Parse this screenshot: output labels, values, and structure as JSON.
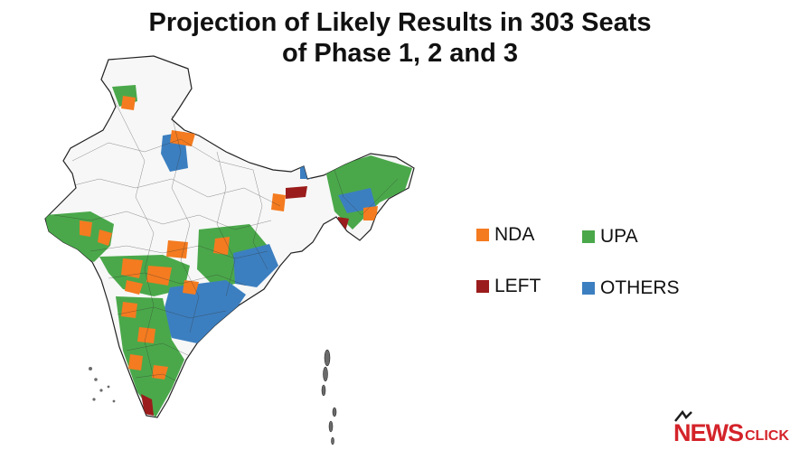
{
  "title": {
    "line1": "Projection of Likely Results in 303 Seats",
    "line2": "of Phase 1, 2 and 3"
  },
  "legend": [
    {
      "key": "nda",
      "label": "NDA",
      "color": "#f47b20"
    },
    {
      "key": "upa",
      "label": "UPA",
      "color": "#4aa84a"
    },
    {
      "key": "left",
      "label": "LEFT",
      "color": "#9b1c1c"
    },
    {
      "key": "others",
      "label": "OTHERS",
      "color": "#3c7fc0"
    }
  ],
  "colors": {
    "no_poll": "#f7f7f7",
    "border": "#222222"
  },
  "logo": {
    "news": "NEWS",
    "click": "CLICK"
  }
}
